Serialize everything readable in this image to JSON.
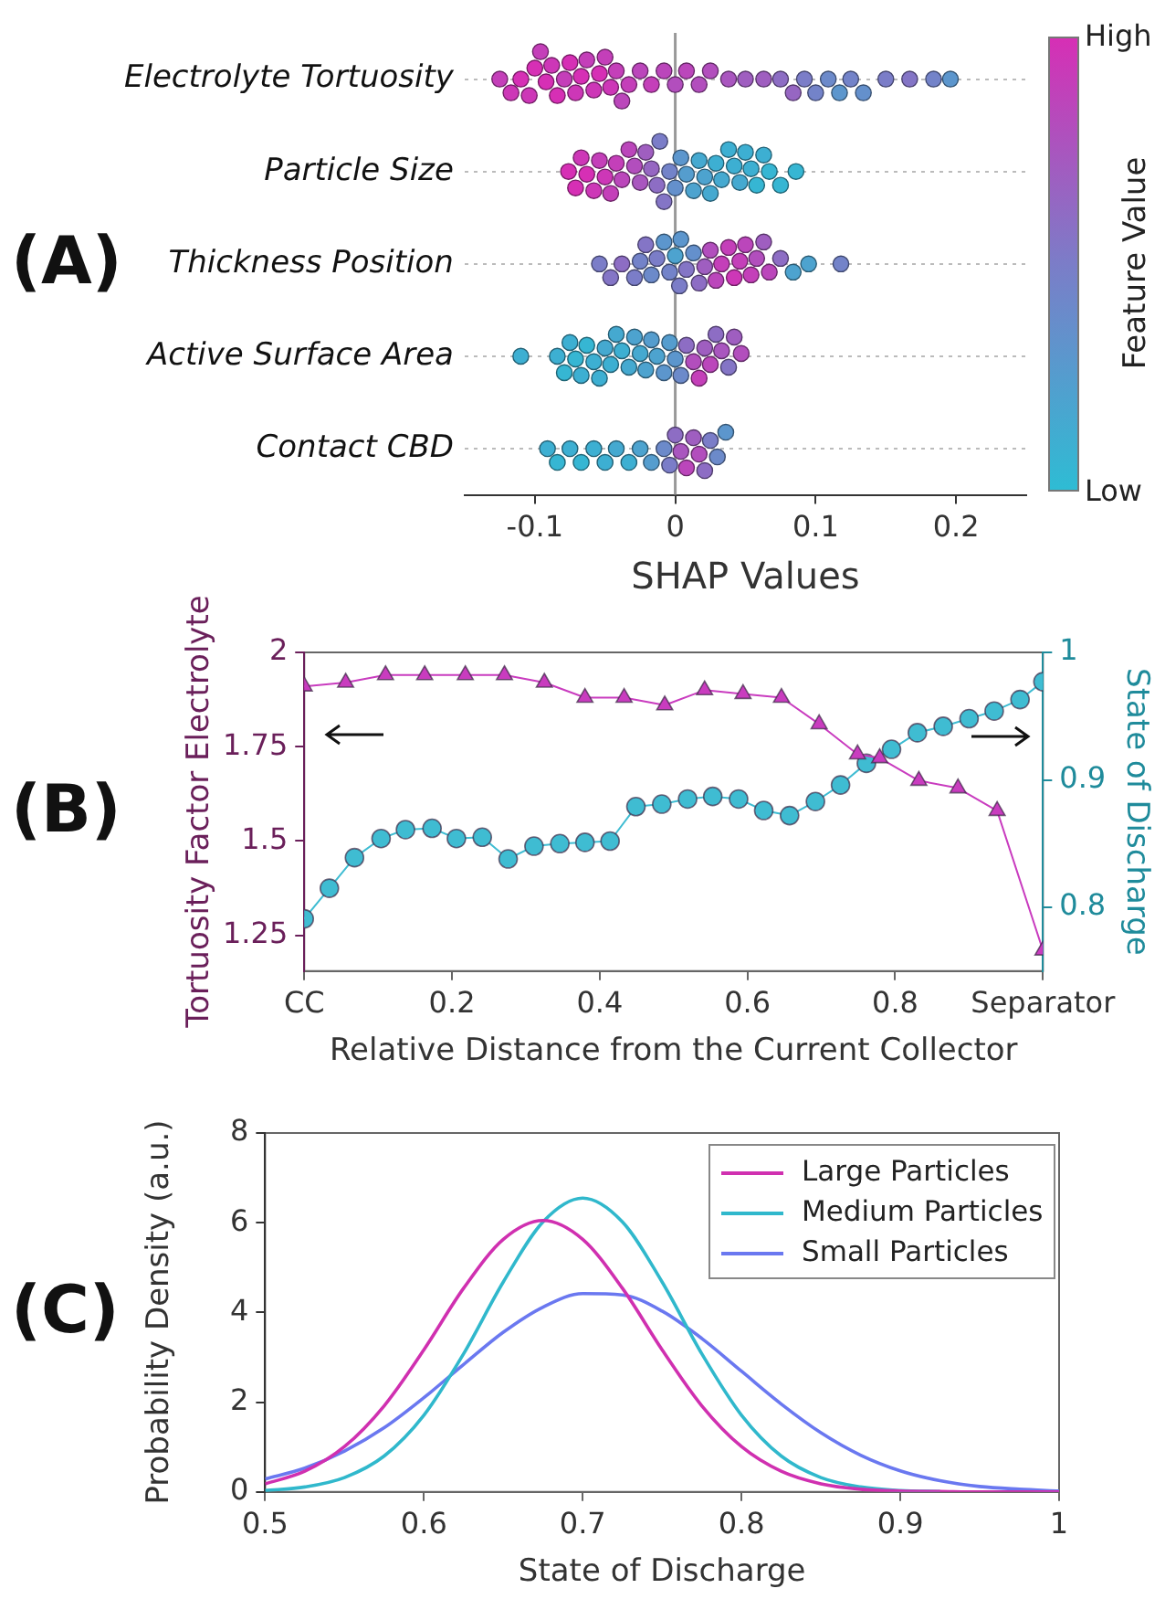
{
  "chart_data": [
    {
      "type": "scatter",
      "orientation": "horizontal",
      "annotations": [
        "(A)"
      ],
      "xlabel": "SHAP Values",
      "categories": [
        "Electrolyte Tortuosity",
        "Particle Size",
        "Thickness Position",
        "Active Surface Area",
        "Contact CBD"
      ],
      "xlim": [
        -0.15,
        0.25
      ],
      "xticks": [
        -0.1,
        0,
        0.1,
        0.2
      ],
      "grid": "y",
      "marker": "circle",
      "clabel": "Feature Value",
      "clim": [
        0,
        1
      ],
      "cticks": [
        {
          "value": 0,
          "label": "Low"
        },
        {
          "value": 1,
          "label": "High"
        }
      ],
      "ref_lines": [
        {
          "axis": "x",
          "value": 0
        }
      ],
      "series": [
        {
          "x": [
            "Electrolyte Tortuosity",
            "Electrolyte Tortuosity",
            "Electrolyte Tortuosity",
            "Electrolyte Tortuosity",
            "Electrolyte Tortuosity",
            "Electrolyte Tortuosity",
            "Electrolyte Tortuosity",
            "Electrolyte Tortuosity",
            "Electrolyte Tortuosity",
            "Electrolyte Tortuosity",
            "Electrolyte Tortuosity",
            "Electrolyte Tortuosity",
            "Electrolyte Tortuosity",
            "Electrolyte Tortuosity",
            "Electrolyte Tortuosity",
            "Electrolyte Tortuosity",
            "Electrolyte Tortuosity",
            "Electrolyte Tortuosity",
            "Electrolyte Tortuosity",
            "Electrolyte Tortuosity",
            "Electrolyte Tortuosity",
            "Electrolyte Tortuosity",
            "Electrolyte Tortuosity",
            "Electrolyte Tortuosity",
            "Electrolyte Tortuosity",
            "Electrolyte Tortuosity",
            "Electrolyte Tortuosity",
            "Electrolyte Tortuosity",
            "Electrolyte Tortuosity",
            "Electrolyte Tortuosity",
            "Electrolyte Tortuosity",
            "Electrolyte Tortuosity",
            "Electrolyte Tortuosity",
            "Electrolyte Tortuosity",
            "Electrolyte Tortuosity",
            "Electrolyte Tortuosity",
            "Electrolyte Tortuosity",
            "Electrolyte Tortuosity",
            "Electrolyte Tortuosity",
            "Electrolyte Tortuosity",
            "Electrolyte Tortuosity",
            "Electrolyte Tortuosity",
            "Electrolyte Tortuosity"
          ],
          "values": [
            -0.125,
            -0.117,
            -0.11,
            -0.104,
            -0.1,
            -0.096,
            -0.092,
            -0.088,
            -0.084,
            -0.079,
            -0.075,
            -0.071,
            -0.067,
            -0.063,
            -0.058,
            -0.054,
            -0.05,
            -0.046,
            -0.042,
            -0.038,
            -0.033,
            -0.025,
            -0.017,
            -0.008,
            0,
            0.008,
            0.017,
            0.025,
            0.038,
            0.05,
            0.063,
            0.075,
            0.084,
            0.092,
            0.1,
            0.109,
            0.117,
            0.125,
            0.134,
            0.15,
            0.167,
            0.184,
            0.196
          ],
          "colors": [
            "#c43fb9",
            "#cd37b7",
            "#d62fb5",
            "#cd37b7",
            "#d62fb5",
            "#c43fb9",
            "#d62fb5",
            "#cd37b7",
            "#d62fb5",
            "#c43fb9",
            "#d62fb5",
            "#cd37b7",
            "#d62fb5",
            "#c43fb9",
            "#cd37b7",
            "#d62fb5",
            "#c43fb9",
            "#cd37b7",
            "#c43fb9",
            "#bb46bb",
            "#c43fb9",
            "#bb46bb",
            "#c43fb9",
            "#bb46bb",
            "#b24ebd",
            "#bb46bb",
            "#b24ebd",
            "#b24ebd",
            "#a956bf",
            "#9f5ec0",
            "#9f5ec0",
            "#8d6dc4",
            "#9666c2",
            "#7b7dc8",
            "#7383c9",
            "#6c8aca",
            "#5c96cd",
            "#7383c9",
            "#6490cc",
            "#7b7dc8",
            "#8475c6",
            "#7383c9",
            "#5c96cd"
          ],
          "cvalues": [
            0.9,
            0.95,
            1,
            0.95,
            1,
            0.9,
            1,
            0.95,
            1,
            0.9,
            1,
            0.95,
            1,
            0.9,
            0.95,
            1,
            0.9,
            0.95,
            0.9,
            0.85,
            0.9,
            0.85,
            0.9,
            0.85,
            0.8,
            0.85,
            0.8,
            0.8,
            0.75,
            0.7,
            0.7,
            0.6,
            0.65,
            0.5,
            0.45,
            0.4,
            0.3,
            0.45,
            0.35,
            0.5,
            0.55,
            0.45,
            0.3
          ]
        },
        {
          "x": [
            "Particle Size",
            "Particle Size",
            "Particle Size",
            "Particle Size",
            "Particle Size",
            "Particle Size",
            "Particle Size",
            "Particle Size",
            "Particle Size",
            "Particle Size",
            "Particle Size",
            "Particle Size",
            "Particle Size",
            "Particle Size",
            "Particle Size",
            "Particle Size",
            "Particle Size",
            "Particle Size",
            "Particle Size",
            "Particle Size",
            "Particle Size",
            "Particle Size",
            "Particle Size",
            "Particle Size",
            "Particle Size",
            "Particle Size",
            "Particle Size",
            "Particle Size",
            "Particle Size",
            "Particle Size",
            "Particle Size",
            "Particle Size",
            "Particle Size",
            "Particle Size",
            "Particle Size",
            "Particle Size",
            "Particle Size",
            "Particle Size"
          ],
          "values": [
            -0.076,
            -0.071,
            -0.067,
            -0.063,
            -0.058,
            -0.054,
            -0.05,
            -0.046,
            -0.042,
            -0.038,
            -0.033,
            -0.029,
            -0.025,
            -0.021,
            -0.017,
            -0.013,
            -0.011,
            -0.008,
            -0.004,
            0,
            0.004,
            0.008,
            0.013,
            0.017,
            0.021,
            0.025,
            0.029,
            0.033,
            0.038,
            0.042,
            0.046,
            0.05,
            0.054,
            0.058,
            0.063,
            0.067,
            0.075,
            0.086
          ],
          "colors": [
            "#d62fb5",
            "#d62fb5",
            "#cd37b7",
            "#d62fb5",
            "#cd37b7",
            "#c43fb9",
            "#cd37b7",
            "#c43fb9",
            "#c43fb9",
            "#bb46bb",
            "#bb46bb",
            "#b24ebd",
            "#a956bf",
            "#9f5ec0",
            "#9666c2",
            "#8d6dc4",
            "#7b7dc8",
            "#8475c6",
            "#7383c9",
            "#6490cc",
            "#5c96cd",
            "#559dce",
            "#4da3cf",
            "#45a9d0",
            "#4da3cf",
            "#45a9d0",
            "#3dafd2",
            "#45a9d0",
            "#3dafd2",
            "#3dafd2",
            "#45a9d0",
            "#3dafd2",
            "#3dafd2",
            "#36b6d3",
            "#3dafd2",
            "#36b6d3",
            "#36b6d3",
            "#36b6d3"
          ],
          "cvalues": [
            1,
            1,
            0.95,
            1,
            0.95,
            0.9,
            0.95,
            0.9,
            0.9,
            0.85,
            0.85,
            0.8,
            0.75,
            0.7,
            0.65,
            0.6,
            0.5,
            0.55,
            0.45,
            0.35,
            0.3,
            0.25,
            0.2,
            0.15,
            0.2,
            0.15,
            0.1,
            0.15,
            0.1,
            0.1,
            0.15,
            0.1,
            0.1,
            0.05,
            0.1,
            0.05,
            0.05,
            0.05
          ]
        },
        {
          "x": [
            "Thickness Position",
            "Thickness Position",
            "Thickness Position",
            "Thickness Position",
            "Thickness Position",
            "Thickness Position",
            "Thickness Position",
            "Thickness Position",
            "Thickness Position",
            "Thickness Position",
            "Thickness Position",
            "Thickness Position",
            "Thickness Position",
            "Thickness Position",
            "Thickness Position",
            "Thickness Position",
            "Thickness Position",
            "Thickness Position",
            "Thickness Position",
            "Thickness Position",
            "Thickness Position",
            "Thickness Position",
            "Thickness Position",
            "Thickness Position",
            "Thickness Position",
            "Thickness Position",
            "Thickness Position",
            "Thickness Position",
            "Thickness Position",
            "Thickness Position",
            "Thickness Position",
            "Thickness Position"
          ],
          "values": [
            -0.054,
            -0.046,
            -0.038,
            -0.029,
            -0.025,
            -0.021,
            -0.017,
            -0.013,
            -0.008,
            -0.004,
            0,
            0.003,
            0.004,
            0.008,
            0.013,
            0.017,
            0.021,
            0.025,
            0.029,
            0.033,
            0.038,
            0.042,
            0.046,
            0.05,
            0.054,
            0.058,
            0.063,
            0.067,
            0.075,
            0.084,
            0.095,
            0.118
          ],
          "colors": [
            "#7b7dc8",
            "#8475c6",
            "#8d6dc4",
            "#7b7dc8",
            "#7383c9",
            "#8475c6",
            "#6c8aca",
            "#7b7dc8",
            "#5c96cd",
            "#7383c9",
            "#4da3cf",
            "#7b7dc8",
            "#5c96cd",
            "#8475c6",
            "#6490cc",
            "#8d6dc4",
            "#9f5ec0",
            "#b24ebd",
            "#bb46bb",
            "#c43fb9",
            "#c43fb9",
            "#cd37b7",
            "#c43fb9",
            "#bb46bb",
            "#c43fb9",
            "#b24ebd",
            "#9f5ec0",
            "#bb46bb",
            "#8d6dc4",
            "#4da3cf",
            "#4da3cf",
            "#7383c9"
          ],
          "cvalues": [
            0.5,
            0.55,
            0.6,
            0.5,
            0.45,
            0.55,
            0.4,
            0.5,
            0.3,
            0.45,
            0.2,
            0.5,
            0.3,
            0.55,
            0.35,
            0.6,
            0.7,
            0.8,
            0.85,
            0.9,
            0.9,
            0.95,
            0.9,
            0.85,
            0.9,
            0.8,
            0.7,
            0.85,
            0.6,
            0.2,
            0.2,
            0.45
          ]
        },
        {
          "x": [
            "Active Surface Area",
            "Active Surface Area",
            "Active Surface Area",
            "Active Surface Area",
            "Active Surface Area",
            "Active Surface Area",
            "Active Surface Area",
            "Active Surface Area",
            "Active Surface Area",
            "Active Surface Area",
            "Active Surface Area",
            "Active Surface Area",
            "Active Surface Area",
            "Active Surface Area",
            "Active Surface Area",
            "Active Surface Area",
            "Active Surface Area",
            "Active Surface Area",
            "Active Surface Area",
            "Active Surface Area",
            "Active Surface Area",
            "Active Surface Area",
            "Active Surface Area",
            "Active Surface Area",
            "Active Surface Area",
            "Active Surface Area",
            "Active Surface Area",
            "Active Surface Area",
            "Active Surface Area",
            "Active Surface Area",
            "Active Surface Area",
            "Active Surface Area",
            "Active Surface Area"
          ],
          "values": [
            -0.11,
            -0.084,
            -0.079,
            -0.075,
            -0.071,
            -0.067,
            -0.063,
            -0.058,
            -0.054,
            -0.05,
            -0.046,
            -0.042,
            -0.038,
            -0.033,
            -0.029,
            -0.025,
            -0.021,
            -0.017,
            -0.013,
            -0.008,
            -0.004,
            0,
            0.004,
            0.008,
            0.013,
            0.017,
            0.021,
            0.025,
            0.029,
            0.033,
            0.038,
            0.042,
            0.047
          ],
          "colors": [
            "#3dafd2",
            "#3dafd2",
            "#36b6d3",
            "#3dafd2",
            "#36b6d3",
            "#3dafd2",
            "#36b6d3",
            "#3dafd2",
            "#3dafd2",
            "#45a9d0",
            "#3dafd2",
            "#45a9d0",
            "#3dafd2",
            "#45a9d0",
            "#4da3cf",
            "#45a9d0",
            "#4da3cf",
            "#559dce",
            "#4da3cf",
            "#5c96cd",
            "#559dce",
            "#5c96cd",
            "#6c8aca",
            "#8d6dc4",
            "#b24ebd",
            "#c43fb9",
            "#9f5ec0",
            "#bb46bb",
            "#8d6dc4",
            "#a956bf",
            "#8475c6",
            "#9f5ec0",
            "#b24ebd"
          ],
          "cvalues": [
            0.1,
            0.1,
            0.05,
            0.1,
            0.05,
            0.1,
            0.05,
            0.1,
            0.1,
            0.15,
            0.1,
            0.15,
            0.1,
            0.15,
            0.2,
            0.15,
            0.2,
            0.25,
            0.2,
            0.3,
            0.25,
            0.3,
            0.4,
            0.6,
            0.8,
            0.9,
            0.7,
            0.85,
            0.6,
            0.75,
            0.55,
            0.7,
            0.8
          ]
        },
        {
          "x": [
            "Contact CBD",
            "Contact CBD",
            "Contact CBD",
            "Contact CBD",
            "Contact CBD",
            "Contact CBD",
            "Contact CBD",
            "Contact CBD",
            "Contact CBD",
            "Contact CBD",
            "Contact CBD",
            "Contact CBD",
            "Contact CBD",
            "Contact CBD",
            "Contact CBD",
            "Contact CBD",
            "Contact CBD",
            "Contact CBD",
            "Contact CBD",
            "Contact CBD",
            "Contact CBD"
          ],
          "values": [
            -0.091,
            -0.084,
            -0.075,
            -0.067,
            -0.058,
            -0.05,
            -0.042,
            -0.033,
            -0.025,
            -0.017,
            -0.008,
            -0.004,
            0,
            0.004,
            0.008,
            0.013,
            0.017,
            0.021,
            0.025,
            0.03,
            0.036
          ],
          "colors": [
            "#3dafd2",
            "#36b6d3",
            "#3dafd2",
            "#36b6d3",
            "#3dafd2",
            "#3dafd2",
            "#45a9d0",
            "#3dafd2",
            "#4da3cf",
            "#559dce",
            "#6c8aca",
            "#7b7dc8",
            "#8d6dc4",
            "#a956bf",
            "#bb46bb",
            "#9f5ec0",
            "#b24ebd",
            "#8d6dc4",
            "#7b7dc8",
            "#6c8aca",
            "#5c96cd"
          ],
          "cvalues": [
            0.1,
            0.05,
            0.1,
            0.05,
            0.1,
            0.1,
            0.15,
            0.1,
            0.2,
            0.25,
            0.4,
            0.5,
            0.6,
            0.75,
            0.85,
            0.7,
            0.8,
            0.6,
            0.5,
            0.4,
            0.3
          ]
        }
      ]
    },
    {
      "type": "line",
      "annotations": [
        "(B)"
      ],
      "xlabel": "Relative Distance from the Current Collector",
      "ylabel": "Tortuosity Factor Electrolyte",
      "y2label": "State of Discharge",
      "xlim": [
        0,
        1
      ],
      "xticks": [
        {
          "value": 0,
          "label": "CC"
        },
        0.2,
        0.4,
        0.6,
        0.8,
        {
          "value": 1,
          "label": "Separator"
        }
      ],
      "ylim": [
        1.155,
        2
      ],
      "yticks": [
        1.25,
        1.5,
        1.75,
        2
      ],
      "y2lim": [
        0.75,
        1
      ],
      "y2ticks": [
        0.8,
        0.9,
        1
      ],
      "legend": false,
      "series": [
        {
          "color": "#c93cbf",
          "marker": "triangle",
          "x": [
            0,
            0.056,
            0.11,
            0.163,
            0.218,
            0.271,
            0.325,
            0.38,
            0.433,
            0.488,
            0.542,
            0.594,
            0.646,
            0.697,
            0.749,
            0.779,
            0.832,
            0.885,
            0.938,
            1
          ],
          "values": [
            1.91,
            1.92,
            1.94,
            1.94,
            1.94,
            1.94,
            1.92,
            1.88,
            1.88,
            1.86,
            1.9,
            1.89,
            1.88,
            1.81,
            1.73,
            1.72,
            1.66,
            1.64,
            1.58,
            1.21
          ]
        },
        {
          "color": "#3fbcd2",
          "marker": "circle",
          "axis": "y2",
          "x": [
            0,
            0.034,
            0.068,
            0.104,
            0.137,
            0.173,
            0.206,
            0.241,
            0.276,
            0.311,
            0.346,
            0.38,
            0.414,
            0.449,
            0.484,
            0.519,
            0.553,
            0.588,
            0.622,
            0.657,
            0.692,
            0.726,
            0.761,
            0.795,
            0.83,
            0.865,
            0.9,
            0.934,
            0.969,
            1
          ],
          "values": [
            0.791,
            0.815,
            0.839,
            0.854,
            0.861,
            0.862,
            0.854,
            0.855,
            0.838,
            0.848,
            0.85,
            0.851,
            0.852,
            0.879,
            0.881,
            0.885,
            0.887,
            0.885,
            0.876,
            0.872,
            0.883,
            0.896,
            0.913,
            0.924,
            0.937,
            0.942,
            0.948,
            0.954,
            0.963,
            0.977
          ]
        }
      ]
    },
    {
      "type": "line",
      "annotations": [
        "(C)"
      ],
      "xlabel": "State of Discharge",
      "ylabel": "Probability Density (a.u.)",
      "xlim": [
        0.5,
        1
      ],
      "xticks": [
        0.5,
        0.6,
        0.7,
        0.8,
        0.9,
        1
      ],
      "ylim": [
        0,
        8
      ],
      "yticks": [
        0,
        2,
        4,
        6,
        8
      ],
      "legend": "top right",
      "marker": "none",
      "x": [
        0.5,
        0.525,
        0.55,
        0.575,
        0.6,
        0.625,
        0.65,
        0.675,
        0.7,
        0.725,
        0.75,
        0.775,
        0.8,
        0.825,
        0.85,
        0.875,
        0.9,
        0.925,
        0.95,
        0.975,
        1
      ],
      "series": [
        {
          "name": "Large Particles",
          "color": "#d030b0",
          "values": [
            0.18,
            0.46,
            1.01,
            1.92,
            3.17,
            4.54,
            5.63,
            6.05,
            5.63,
            4.54,
            3.17,
            1.92,
            1.01,
            0.46,
            0.18,
            0.06,
            0.02,
            0.01,
            0,
            0,
            0
          ]
        },
        {
          "name": "Medium Particles",
          "color": "#30b8cc",
          "values": [
            0.03,
            0.11,
            0.32,
            0.8,
            1.71,
            3.08,
            4.68,
            6.02,
            6.55,
            6.02,
            4.68,
            3.08,
            1.71,
            0.8,
            0.32,
            0.11,
            0.03,
            0.01,
            null,
            null,
            null
          ]
        },
        {
          "name": "Small Particles",
          "color": "#6a78f0",
          "values": [
            0.29,
            0.53,
            0.91,
            1.43,
            2.1,
            2.84,
            3.56,
            4.12,
            4.42,
            4.39,
            4.03,
            3.42,
            2.69,
            1.96,
            1.32,
            0.82,
            0.47,
            0.25,
            0.12,
            0.06,
            0.02
          ]
        }
      ]
    }
  ]
}
